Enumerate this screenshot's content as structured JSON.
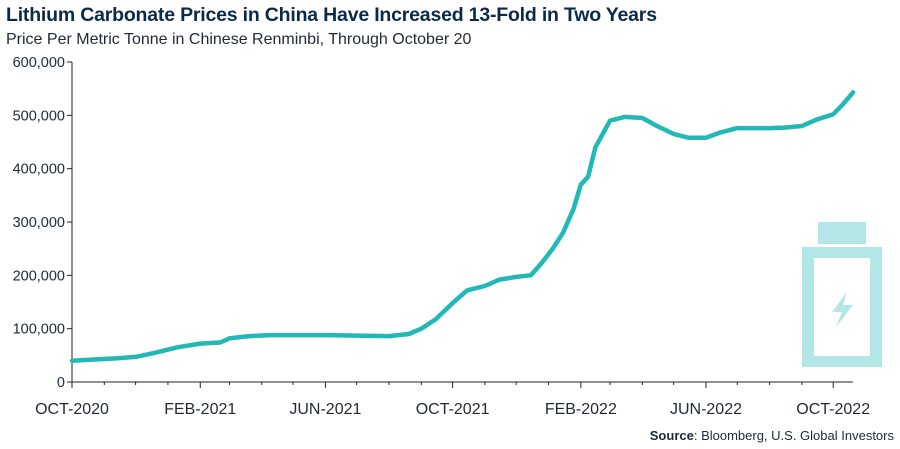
{
  "title": "Lithium Carbonate Prices in China Have Increased 13-Fold in Two Years",
  "subtitle": "Price Per Metric Tonne in Chinese Renminbi, Through October 20",
  "source_label": "Source",
  "source_text": ": Bloomberg, U.S. Global Investors",
  "icon": "battery-charging-icon",
  "colors": {
    "line": "#22b8b8",
    "icon": "#b3e6e6",
    "title": "#0b2a4a",
    "axis": "#222222"
  },
  "chart_data": {
    "type": "line",
    "title": "Lithium Carbonate Prices in China Have Increased 13-Fold in Two Years",
    "subtitle": "Price Per Metric Tonne in Chinese Renminbi, Through October 20",
    "xlabel": "",
    "ylabel": "",
    "ylim": [
      0,
      600000
    ],
    "yticks": [
      0,
      100000,
      200000,
      300000,
      400000,
      500000,
      600000
    ],
    "ytick_labels": [
      "0",
      "100,000",
      "200,000",
      "300,000",
      "400,000",
      "500,000",
      "600,000"
    ],
    "xticks": [
      "2020-10-01",
      "2021-02-01",
      "2021-06-01",
      "2021-10-01",
      "2022-02-01",
      "2022-06-01",
      "2022-10-01"
    ],
    "xtick_labels": [
      "OCT-2020",
      "FEB-2021",
      "JUN-2021",
      "OCT-2021",
      "FEB-2022",
      "JUN-2022",
      "OCT-2022"
    ],
    "xlim": [
      "2020-10-01",
      "2022-10-20"
    ],
    "grid": false,
    "series": [
      {
        "name": "",
        "x": [
          "2020-10-01",
          "2020-10-20",
          "2020-11-10",
          "2020-12-01",
          "2020-12-20",
          "2021-01-10",
          "2021-02-01",
          "2021-02-20",
          "2021-03-01",
          "2021-03-20",
          "2021-04-10",
          "2021-05-01",
          "2021-06-01",
          "2021-07-01",
          "2021-08-01",
          "2021-08-20",
          "2021-09-01",
          "2021-09-15",
          "2021-10-01",
          "2021-10-15",
          "2021-11-01",
          "2021-11-15",
          "2021-12-01",
          "2021-12-15",
          "2021-12-25",
          "2022-01-05",
          "2022-01-15",
          "2022-01-25",
          "2022-02-01",
          "2022-02-08",
          "2022-02-15",
          "2022-03-01",
          "2022-03-15",
          "2022-04-01",
          "2022-04-15",
          "2022-05-01",
          "2022-05-15",
          "2022-06-01",
          "2022-06-15",
          "2022-07-01",
          "2022-07-15",
          "2022-08-01",
          "2022-08-15",
          "2022-09-01",
          "2022-09-15",
          "2022-10-01",
          "2022-10-10",
          "2022-10-20"
        ],
        "y": [
          40000,
          42000,
          44000,
          47000,
          55000,
          65000,
          72000,
          74000,
          82000,
          86000,
          88000,
          88000,
          88000,
          87000,
          86000,
          90000,
          100000,
          118000,
          148000,
          172000,
          180000,
          192000,
          197000,
          200000,
          222000,
          250000,
          280000,
          325000,
          370000,
          385000,
          440000,
          490000,
          497000,
          495000,
          480000,
          465000,
          458000,
          458000,
          468000,
          476000,
          476000,
          476000,
          477000,
          480000,
          492000,
          502000,
          520000,
          543000
        ]
      }
    ]
  }
}
